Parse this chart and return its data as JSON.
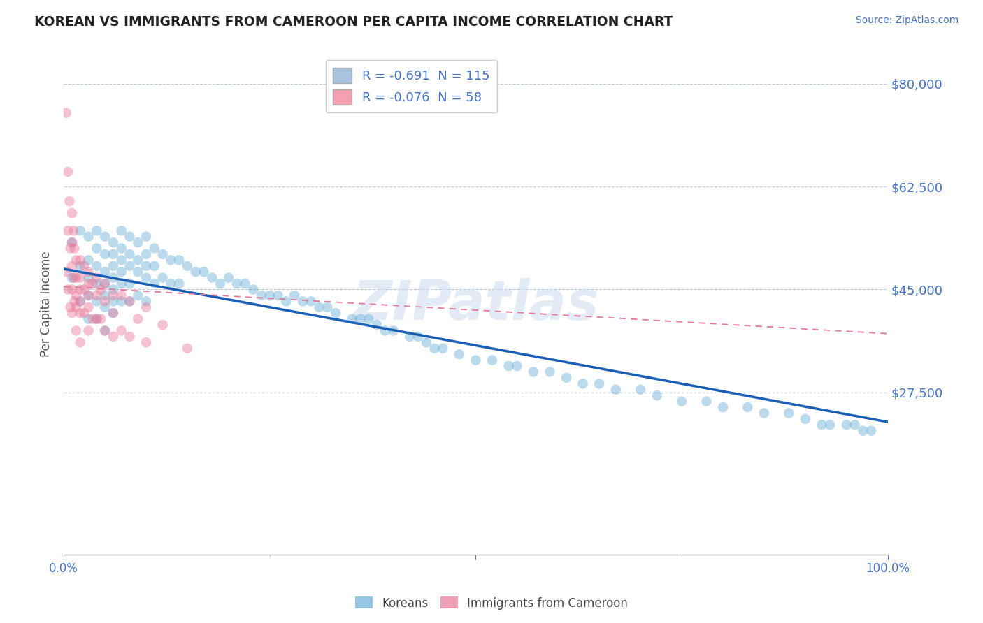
{
  "title": "KOREAN VS IMMIGRANTS FROM CAMEROON PER CAPITA INCOME CORRELATION CHART",
  "source": "Source: ZipAtlas.com",
  "ylabel": "Per Capita Income",
  "ylim": [
    0,
    85000
  ],
  "xlim": [
    0,
    1.0
  ],
  "legend1_label": "R = -0.691  N = 115",
  "legend2_label": "R = -0.076  N = 58",
  "legend1_color": "#a8c4e0",
  "legend2_color": "#f4a0b0",
  "blue_color": "#6aaed6",
  "pink_color": "#e87898",
  "trendline_blue": "#1a5fb4",
  "trendline_pink_dash": "#e87898",
  "watermark": "ZIPatlas",
  "title_color": "#333333",
  "axis_label_color": "#4472c4",
  "ytick_vals": [
    27500,
    45000,
    62500,
    80000
  ],
  "ytick_labels": [
    "$27,500",
    "$45,000",
    "$62,500",
    "$80,000"
  ],
  "blue_scatter_x": [
    0.01,
    0.01,
    0.02,
    0.02,
    0.02,
    0.03,
    0.03,
    0.03,
    0.03,
    0.03,
    0.04,
    0.04,
    0.04,
    0.04,
    0.04,
    0.04,
    0.05,
    0.05,
    0.05,
    0.05,
    0.05,
    0.05,
    0.05,
    0.06,
    0.06,
    0.06,
    0.06,
    0.06,
    0.06,
    0.06,
    0.07,
    0.07,
    0.07,
    0.07,
    0.07,
    0.07,
    0.08,
    0.08,
    0.08,
    0.08,
    0.08,
    0.09,
    0.09,
    0.09,
    0.09,
    0.1,
    0.1,
    0.1,
    0.1,
    0.1,
    0.11,
    0.11,
    0.11,
    0.12,
    0.12,
    0.13,
    0.13,
    0.14,
    0.14,
    0.15,
    0.16,
    0.17,
    0.18,
    0.19,
    0.2,
    0.21,
    0.22,
    0.23,
    0.24,
    0.25,
    0.26,
    0.27,
    0.28,
    0.29,
    0.3,
    0.31,
    0.32,
    0.33,
    0.35,
    0.36,
    0.37,
    0.38,
    0.39,
    0.4,
    0.42,
    0.43,
    0.44,
    0.45,
    0.46,
    0.48,
    0.5,
    0.52,
    0.54,
    0.55,
    0.57,
    0.59,
    0.61,
    0.63,
    0.65,
    0.67,
    0.7,
    0.72,
    0.75,
    0.78,
    0.8,
    0.83,
    0.85,
    0.88,
    0.9,
    0.92,
    0.93,
    0.95,
    0.96,
    0.97,
    0.98
  ],
  "blue_scatter_y": [
    53000,
    47000,
    55000,
    49000,
    43000,
    54000,
    50000,
    47000,
    44000,
    40000,
    55000,
    52000,
    49000,
    46000,
    43000,
    40000,
    54000,
    51000,
    48000,
    46000,
    44000,
    42000,
    38000,
    53000,
    51000,
    49000,
    47000,
    45000,
    43000,
    41000,
    55000,
    52000,
    50000,
    48000,
    46000,
    43000,
    54000,
    51000,
    49000,
    46000,
    43000,
    53000,
    50000,
    48000,
    44000,
    54000,
    51000,
    49000,
    47000,
    43000,
    52000,
    49000,
    46000,
    51000,
    47000,
    50000,
    46000,
    50000,
    46000,
    49000,
    48000,
    48000,
    47000,
    46000,
    47000,
    46000,
    46000,
    45000,
    44000,
    44000,
    44000,
    43000,
    44000,
    43000,
    43000,
    42000,
    42000,
    41000,
    40000,
    40000,
    40000,
    39000,
    38000,
    38000,
    37000,
    37000,
    36000,
    35000,
    35000,
    34000,
    33000,
    33000,
    32000,
    32000,
    31000,
    31000,
    30000,
    29000,
    29000,
    28000,
    28000,
    27000,
    26000,
    26000,
    25000,
    25000,
    24000,
    24000,
    23000,
    22000,
    22000,
    22000,
    22000,
    21000,
    21000
  ],
  "pink_scatter_x": [
    0.003,
    0.003,
    0.005,
    0.005,
    0.005,
    0.007,
    0.008,
    0.008,
    0.01,
    0.01,
    0.01,
    0.01,
    0.01,
    0.012,
    0.012,
    0.013,
    0.013,
    0.015,
    0.015,
    0.015,
    0.015,
    0.015,
    0.02,
    0.02,
    0.02,
    0.02,
    0.02,
    0.02,
    0.025,
    0.025,
    0.025,
    0.03,
    0.03,
    0.03,
    0.03,
    0.03,
    0.035,
    0.035,
    0.04,
    0.04,
    0.04,
    0.045,
    0.045,
    0.05,
    0.05,
    0.05,
    0.06,
    0.06,
    0.06,
    0.07,
    0.07,
    0.08,
    0.08,
    0.09,
    0.1,
    0.1,
    0.12,
    0.15
  ],
  "pink_scatter_y": [
    75000,
    48000,
    65000,
    55000,
    45000,
    60000,
    52000,
    42000,
    58000,
    53000,
    49000,
    45000,
    41000,
    55000,
    47000,
    52000,
    43000,
    50000,
    47000,
    44000,
    42000,
    38000,
    50000,
    47000,
    45000,
    43000,
    41000,
    36000,
    49000,
    45000,
    41000,
    48000,
    46000,
    44000,
    42000,
    38000,
    46000,
    40000,
    47000,
    44000,
    40000,
    45000,
    40000,
    46000,
    43000,
    38000,
    44000,
    41000,
    37000,
    44000,
    38000,
    43000,
    37000,
    40000,
    42000,
    36000,
    39000,
    35000
  ]
}
